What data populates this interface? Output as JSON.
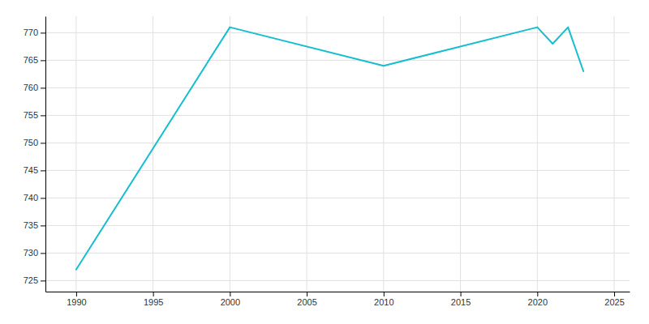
{
  "chart_data": {
    "type": "line",
    "x": [
      1990,
      2000,
      2010,
      2020,
      2021,
      2022,
      2023
    ],
    "values": [
      727,
      771,
      764,
      771,
      768,
      771,
      763
    ],
    "color": "#17becf",
    "xlim": [
      1988,
      2026
    ],
    "ylim": [
      723,
      773
    ],
    "xticks": [
      1990,
      1995,
      2000,
      2005,
      2010,
      2015,
      2020,
      2025
    ],
    "yticks": [
      725,
      730,
      735,
      740,
      745,
      750,
      755,
      760,
      765,
      770
    ],
    "grid": true
  }
}
